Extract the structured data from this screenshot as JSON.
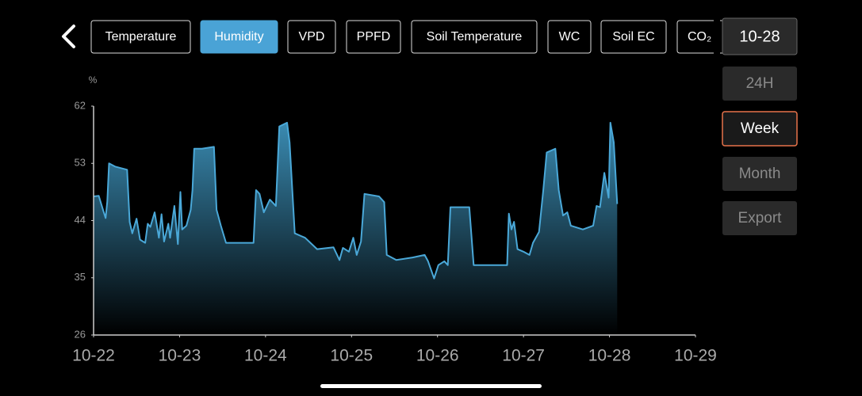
{
  "tabs": [
    "Temperature",
    "Humidity",
    "VPD",
    "PPFD",
    "Soil Temperature",
    "WC",
    "Soil EC",
    "CO₂"
  ],
  "selected_tab_index": 1,
  "date": "10-28",
  "ranges": [
    "24H",
    "Week",
    "Month"
  ],
  "selected_range_index": 1,
  "export": "Export",
  "chart_data": {
    "type": "area",
    "y_unit": "%",
    "xlim": [
      0,
      7
    ],
    "xticks": [
      {
        "value": 0,
        "label": "10-22"
      },
      {
        "value": 1,
        "label": "10-23"
      },
      {
        "value": 2,
        "label": "10-24"
      },
      {
        "value": 3,
        "label": "10-25"
      },
      {
        "value": 4,
        "label": "10-26"
      },
      {
        "value": 5,
        "label": "10-27"
      },
      {
        "value": 6,
        "label": "10-28"
      },
      {
        "value": 7,
        "label": "10-29"
      }
    ],
    "ylim": [
      26,
      62
    ],
    "yticks": [
      26,
      35,
      44,
      53,
      62
    ],
    "color": "#4aa8d8",
    "x": [
      0,
      0.06,
      0.11,
      0.14,
      0.16,
      0.18,
      0.25,
      0.39,
      0.42,
      0.45,
      0.5,
      0.54,
      0.6,
      0.63,
      0.66,
      0.71,
      0.76,
      0.79,
      0.82,
      0.87,
      0.89,
      0.94,
      0.98,
      1.01,
      1.03,
      1.08,
      1.13,
      1.15,
      1.17,
      1.26,
      1.4,
      1.43,
      1.48,
      1.54,
      1.86,
      1.89,
      1.93,
      1.98,
      2.05,
      2.12,
      2.16,
      2.25,
      2.28,
      2.34,
      2.46,
      2.6,
      2.79,
      2.86,
      2.9,
      2.97,
      3.02,
      3.06,
      3.11,
      3.15,
      3.32,
      3.38,
      3.41,
      3.52,
      3.71,
      3.85,
      3.89,
      3.96,
      4.01,
      4.08,
      4.12,
      4.15,
      4.37,
      4.42,
      4.81,
      4.83,
      4.86,
      4.89,
      4.93,
      5.0,
      5.07,
      5.11,
      5.18,
      5.23,
      5.27,
      5.37,
      5.41,
      5.46,
      5.51,
      5.55,
      5.69,
      5.81,
      5.85,
      5.89,
      5.94,
      5.99,
      6.01,
      6.05,
      6.09
    ],
    "values": [
      47.8,
      47.9,
      45.7,
      44.4,
      47,
      53,
      52.5,
      52,
      43.8,
      42,
      44.3,
      41,
      40.5,
      43.5,
      43,
      45.3,
      41.3,
      45,
      40.7,
      43.5,
      41.3,
      46.3,
      40.3,
      48.5,
      42.6,
      43.2,
      45.7,
      48.8,
      55.3,
      55.3,
      55.6,
      45.7,
      43.2,
      40.5,
      40.5,
      48.8,
      48.2,
      45.3,
      47.3,
      46.3,
      58.8,
      59.4,
      56.3,
      42,
      41.3,
      39.5,
      39.8,
      37.8,
      39.7,
      39.1,
      41.3,
      38.6,
      40.7,
      48.2,
      47.8,
      46.9,
      38.6,
      37.8,
      38.2,
      38.6,
      37.6,
      34.9,
      37,
      37.6,
      37,
      46.1,
      46.1,
      37,
      37,
      45.1,
      42.6,
      43.8,
      39.5,
      39.1,
      38.6,
      40.5,
      42.2,
      48.8,
      54.7,
      55.3,
      48.8,
      44.8,
      45.3,
      43.2,
      42.6,
      43.2,
      46.3,
      46.1,
      51.5,
      47.6,
      59.4,
      56.3,
      46.6
    ]
  }
}
